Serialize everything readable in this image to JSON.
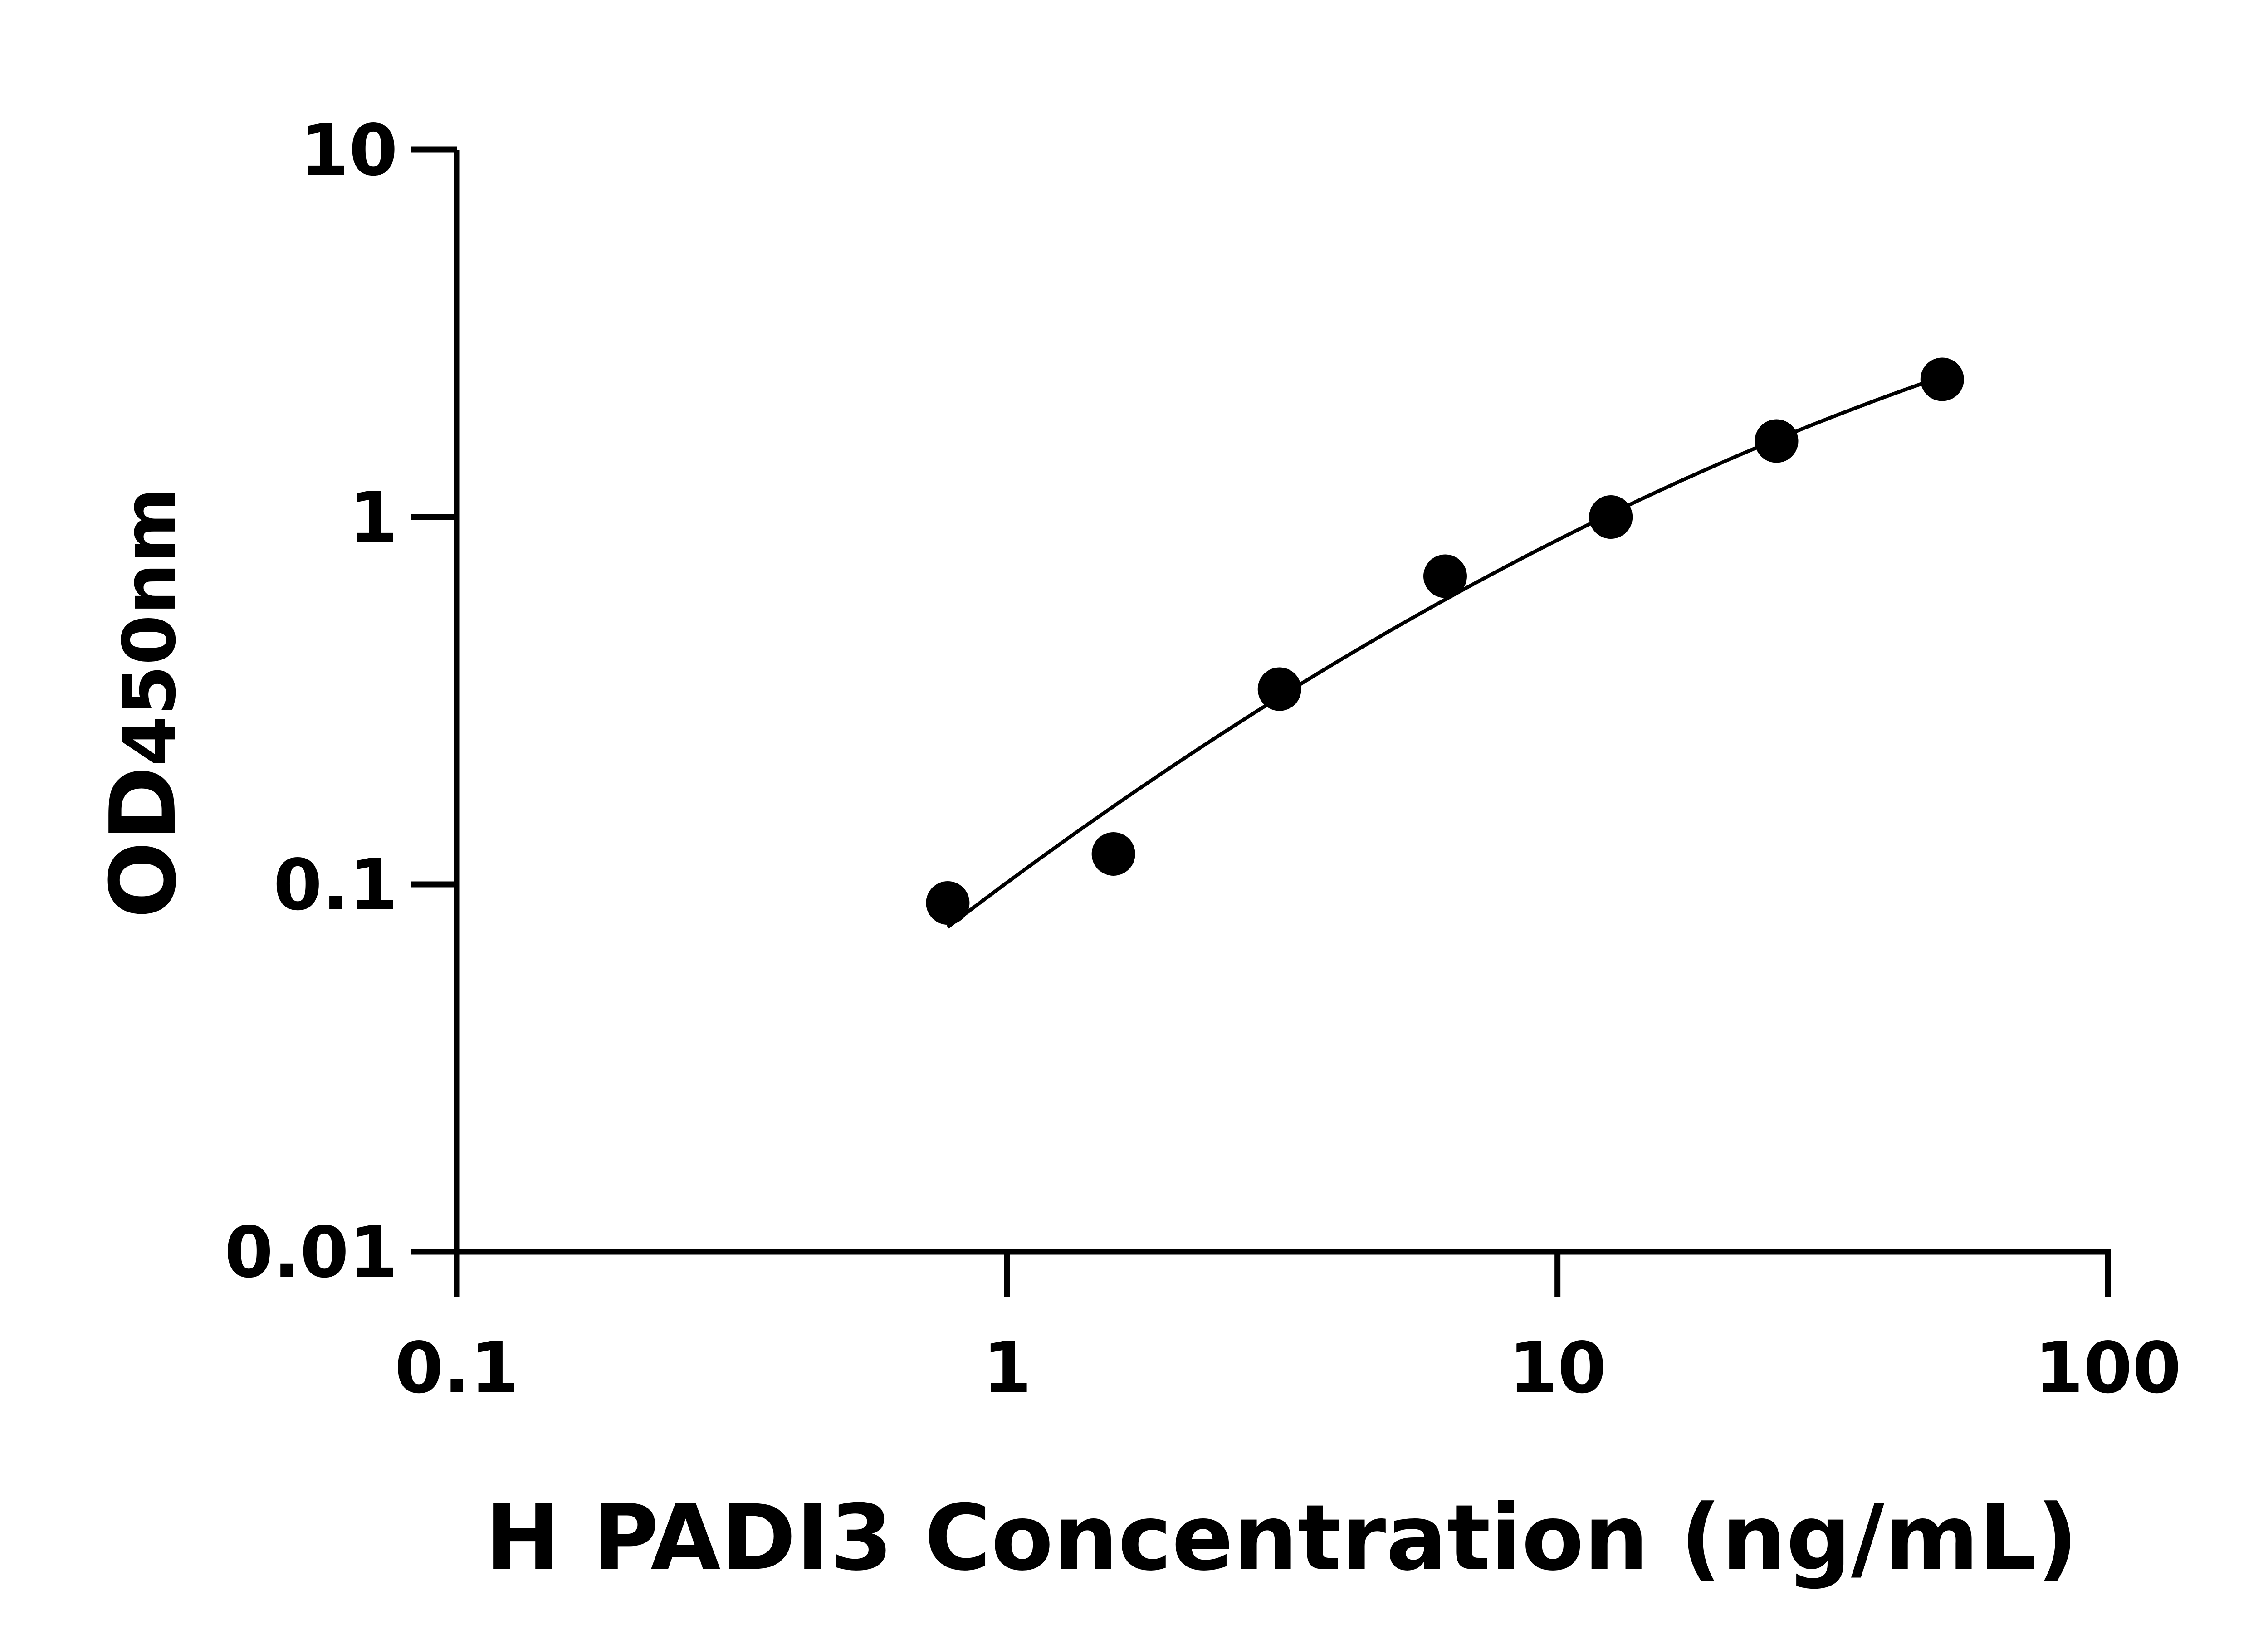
{
  "chart_data": {
    "type": "scatter",
    "title": "",
    "xlabel": "H PADI3 Concentration (ng/mL)",
    "ylabel_main": "OD",
    "ylabel_sub": "450nm",
    "x_scale": "log",
    "y_scale": "log",
    "xlim": [
      0.1,
      100
    ],
    "ylim": [
      0.01,
      10
    ],
    "x_ticks": [
      "0.1",
      "1",
      "10",
      "100"
    ],
    "y_ticks": [
      "0.01",
      "0.1",
      "1",
      "10"
    ],
    "grid": false,
    "legend": "none",
    "fit_curve": true,
    "points": [
      {
        "x": 0.78,
        "y": 0.089
      },
      {
        "x": 1.56,
        "y": 0.121
      },
      {
        "x": 3.125,
        "y": 0.34
      },
      {
        "x": 6.25,
        "y": 0.69
      },
      {
        "x": 12.5,
        "y": 1.0
      },
      {
        "x": 25,
        "y": 1.61
      },
      {
        "x": 50,
        "y": 2.37
      }
    ],
    "colors": {
      "axis": "#000000",
      "marker": "#000000",
      "curve": "#000000"
    }
  }
}
